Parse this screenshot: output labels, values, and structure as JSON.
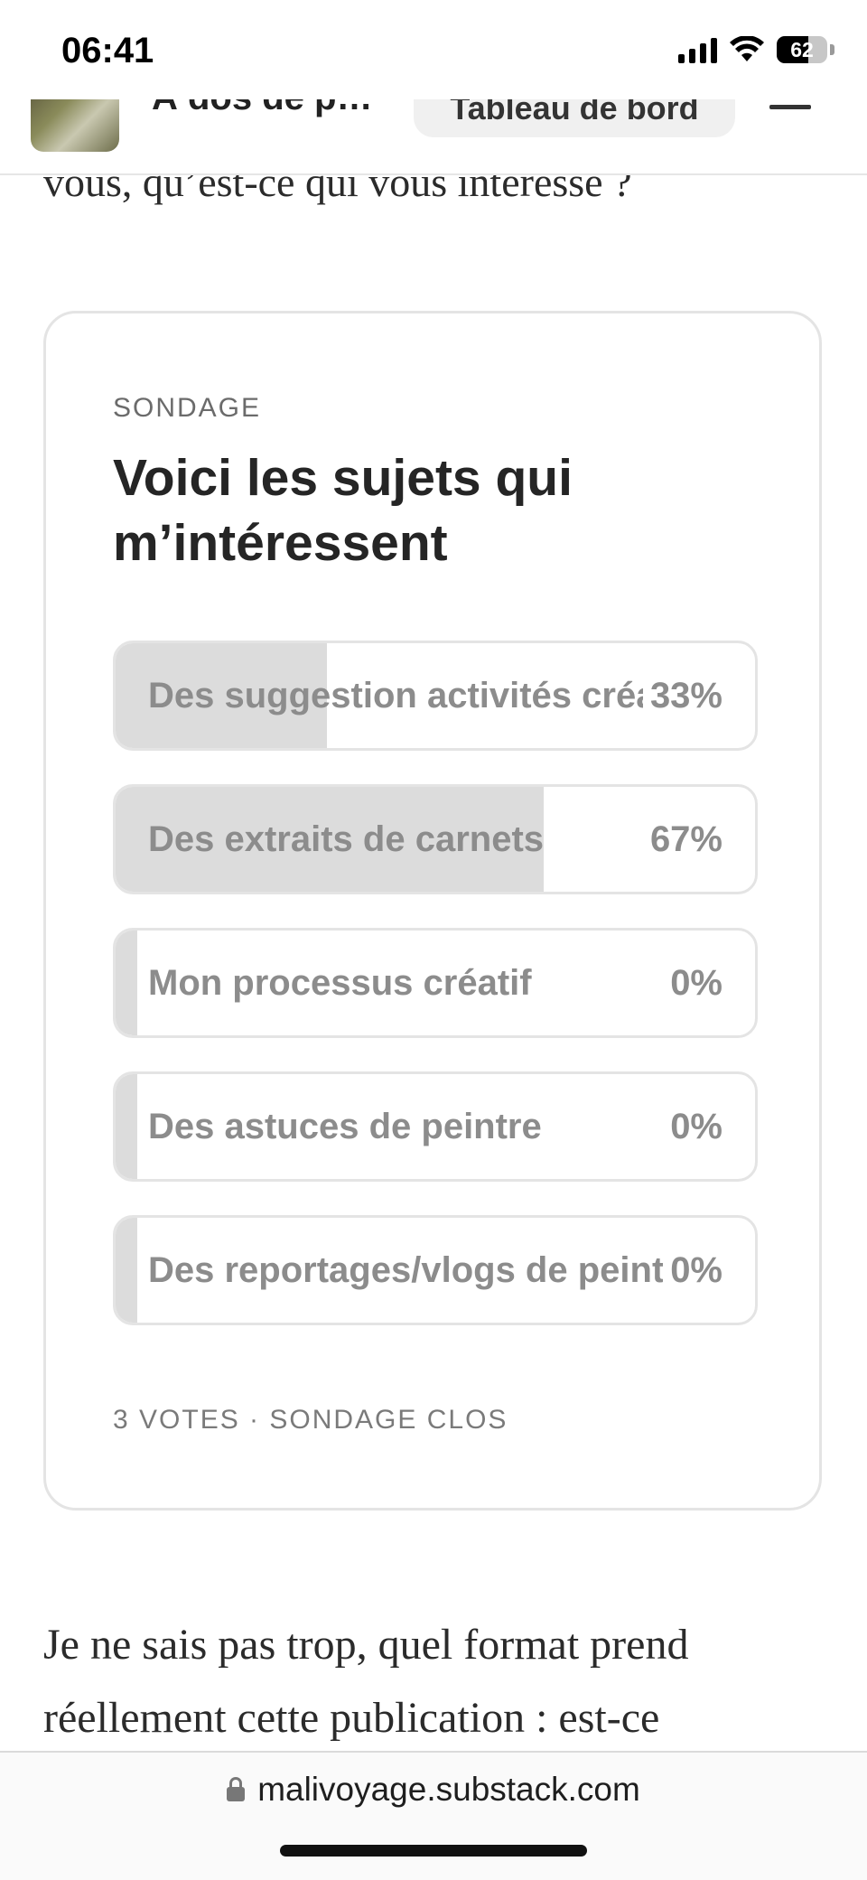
{
  "status_bar": {
    "time": "06:41",
    "battery": "62"
  },
  "header": {
    "publication_name": "À dos de p…",
    "dashboard_label": "Tableau de bord"
  },
  "article": {
    "intro_line": "vous, qu’est-ce qui vous intéresse ?",
    "body_text": "Je ne sais pas trop, quel format prend réellement cette publication : est-ce"
  },
  "poll": {
    "kicker": "SONDAGE",
    "title": "Voici les sujets qui m’intéressent",
    "options": [
      {
        "label": "Des suggestion activités créatives",
        "percent": "33%",
        "share": 0.33
      },
      {
        "label": "Des extraits de carnets",
        "percent": "67%",
        "share": 0.67
      },
      {
        "label": "Mon processus créatif",
        "percent": "0%",
        "share": 0
      },
      {
        "label": "Des astuces de peintre",
        "percent": "0%",
        "share": 0
      },
      {
        "label": "Des reportages/vlogs de peinture",
        "percent": "0%",
        "share": 0
      }
    ],
    "footer": "3 VOTES · SONDAGE CLOS"
  },
  "browser": {
    "url": "malivoyage.substack.com"
  }
}
